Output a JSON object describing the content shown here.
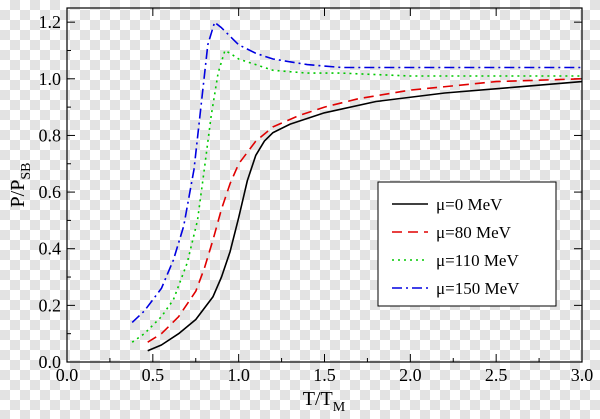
{
  "chart_data": {
    "type": "line",
    "xlabel": {
      "main": "T/T",
      "sub": "M"
    },
    "ylabel": {
      "main": "P/P",
      "sub": "SB"
    },
    "xlim": [
      0.0,
      3.0
    ],
    "ylim": [
      0.0,
      1.25
    ],
    "xticks": [
      "0.0",
      "0.5",
      "1.0",
      "1.5",
      "2.0",
      "2.5",
      "3.0"
    ],
    "yticks": [
      "0.0",
      "0.2",
      "0.4",
      "0.6",
      "0.8",
      "1.0",
      "1.2"
    ],
    "legend_position": "center-right",
    "series": [
      {
        "name": "μ=0 MeV",
        "color": "#000000",
        "dash": "solid",
        "x": [
          0.47,
          0.55,
          0.65,
          0.75,
          0.85,
          0.9,
          0.95,
          1.0,
          1.05,
          1.1,
          1.15,
          1.2,
          1.3,
          1.5,
          1.8,
          2.2,
          2.6,
          3.0
        ],
        "y": [
          0.04,
          0.06,
          0.1,
          0.15,
          0.23,
          0.3,
          0.39,
          0.51,
          0.64,
          0.73,
          0.78,
          0.81,
          0.84,
          0.88,
          0.92,
          0.95,
          0.97,
          0.99
        ]
      },
      {
        "name": "μ=80 MeV",
        "color": "#e00000",
        "dash": "dashed",
        "x": [
          0.47,
          0.55,
          0.65,
          0.75,
          0.8,
          0.85,
          0.9,
          0.95,
          1.0,
          1.1,
          1.2,
          1.35,
          1.5,
          1.7,
          2.0,
          2.5,
          3.0
        ],
        "y": [
          0.07,
          0.1,
          0.16,
          0.25,
          0.33,
          0.43,
          0.54,
          0.63,
          0.7,
          0.78,
          0.83,
          0.87,
          0.9,
          0.93,
          0.96,
          0.99,
          1.0
        ]
      },
      {
        "name": "μ=110 MeV",
        "color": "#00c800",
        "dash": "dotted",
        "x": [
          0.38,
          0.45,
          0.55,
          0.62,
          0.7,
          0.76,
          0.8,
          0.84,
          0.88,
          0.92,
          0.95,
          1.0,
          1.1,
          1.2,
          1.4,
          1.6,
          2.0,
          2.5,
          3.0
        ],
        "y": [
          0.07,
          0.1,
          0.16,
          0.22,
          0.35,
          0.5,
          0.68,
          0.87,
          1.02,
          1.1,
          1.09,
          1.07,
          1.05,
          1.03,
          1.02,
          1.02,
          1.01,
          1.01,
          1.01
        ]
      },
      {
        "name": "μ=150 MeV",
        "color": "#0000e0",
        "dash": "dashdot",
        "x": [
          0.38,
          0.45,
          0.55,
          0.62,
          0.68,
          0.74,
          0.78,
          0.82,
          0.86,
          0.9,
          0.95,
          1.0,
          1.1,
          1.2,
          1.4,
          1.6,
          2.0,
          2.5,
          3.0
        ],
        "y": [
          0.14,
          0.18,
          0.26,
          0.36,
          0.48,
          0.68,
          0.9,
          1.12,
          1.2,
          1.18,
          1.15,
          1.12,
          1.09,
          1.07,
          1.05,
          1.04,
          1.04,
          1.04,
          1.04
        ]
      }
    ]
  }
}
